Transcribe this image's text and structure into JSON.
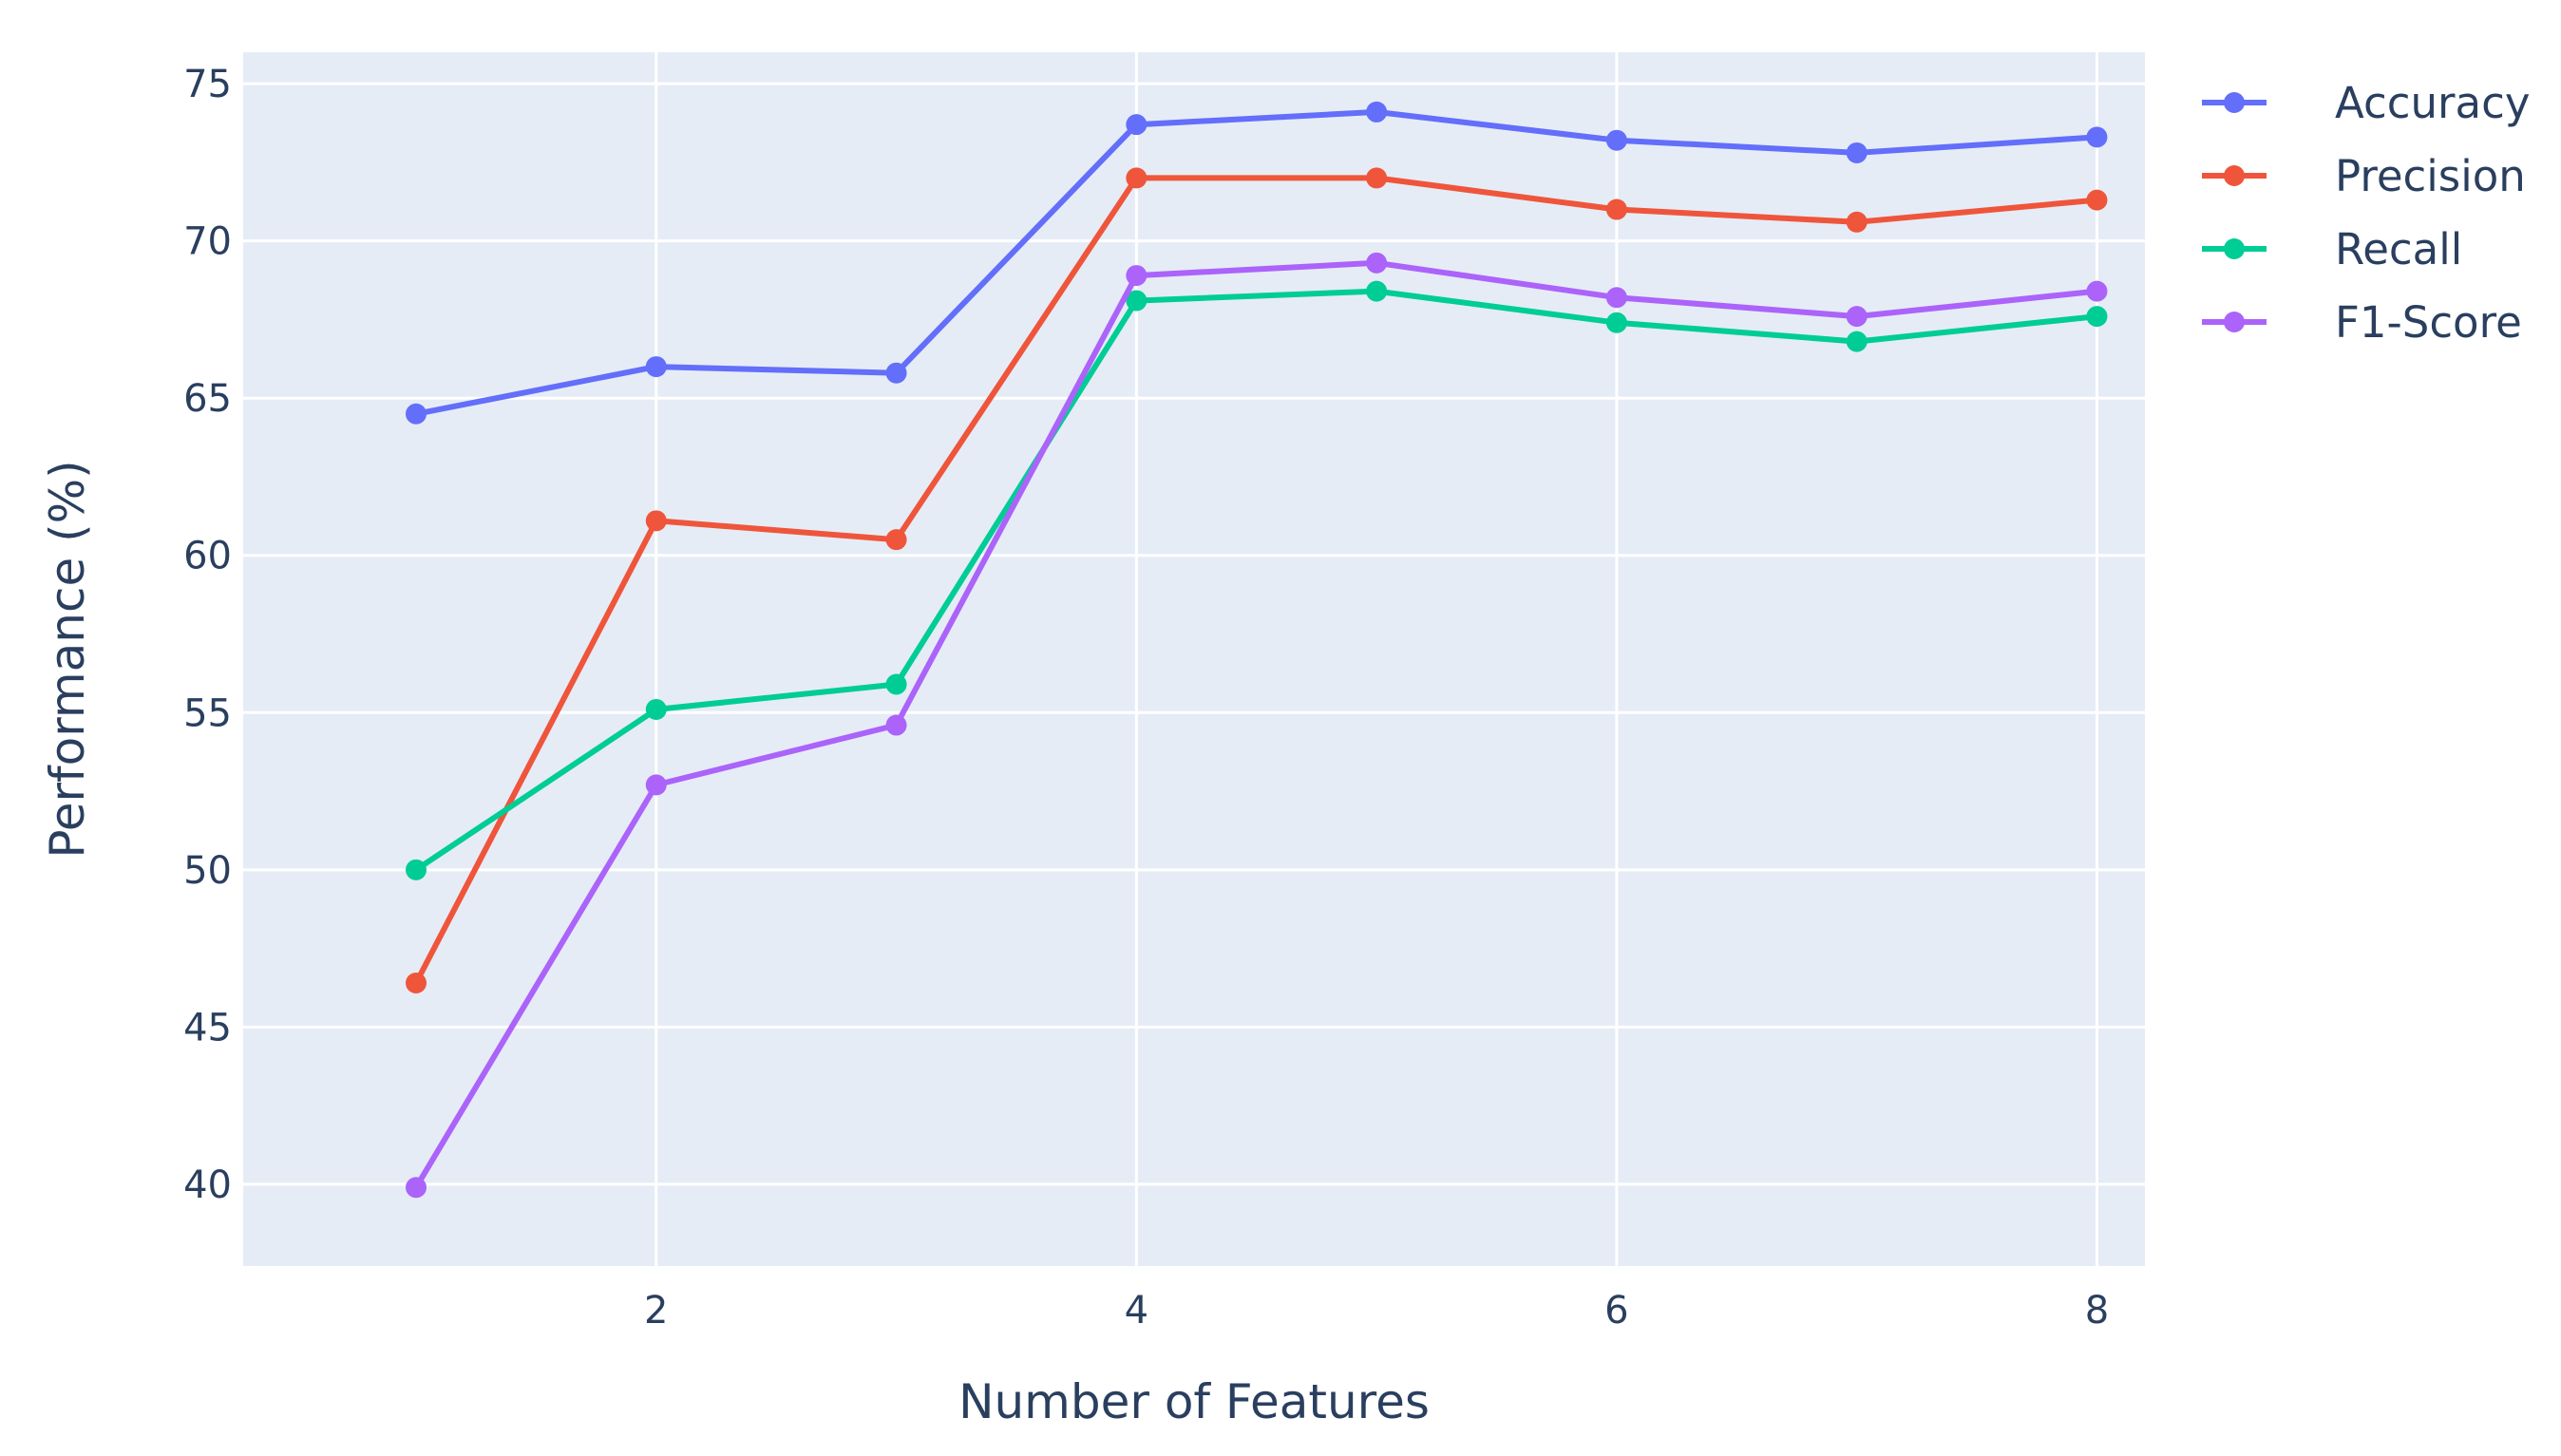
{
  "chart_data": {
    "type": "line",
    "xlabel": "Number of Features",
    "ylabel": "Performance (%)",
    "x": [
      1,
      2,
      3,
      4,
      5,
      6,
      7,
      8
    ],
    "xlim": [
      0.28,
      8.2
    ],
    "ylim": [
      37.4,
      76
    ],
    "xticks": [
      2,
      4,
      6,
      8
    ],
    "yticks": [
      40,
      45,
      50,
      55,
      60,
      65,
      70,
      75
    ],
    "grid": true,
    "legend_position": "right",
    "plot_background": "#e5ecf6",
    "grid_color": "#ffffff",
    "text_color": "#2a3f5f",
    "series": [
      {
        "name": "Accuracy",
        "color": "#636efa",
        "values": [
          64.5,
          66.0,
          65.8,
          73.7,
          74.1,
          73.2,
          72.8,
          73.3
        ]
      },
      {
        "name": "Precision",
        "color": "#ef553b",
        "values": [
          46.4,
          61.1,
          60.5,
          72.0,
          72.0,
          71.0,
          70.6,
          71.3
        ]
      },
      {
        "name": "Recall",
        "color": "#00cc96",
        "values": [
          50.0,
          55.1,
          55.9,
          68.1,
          68.4,
          67.4,
          66.8,
          67.6
        ]
      },
      {
        "name": "F1-Score",
        "color": "#ab63fa",
        "values": [
          39.9,
          52.7,
          54.6,
          68.9,
          69.3,
          68.2,
          67.6,
          68.4
        ]
      }
    ]
  }
}
